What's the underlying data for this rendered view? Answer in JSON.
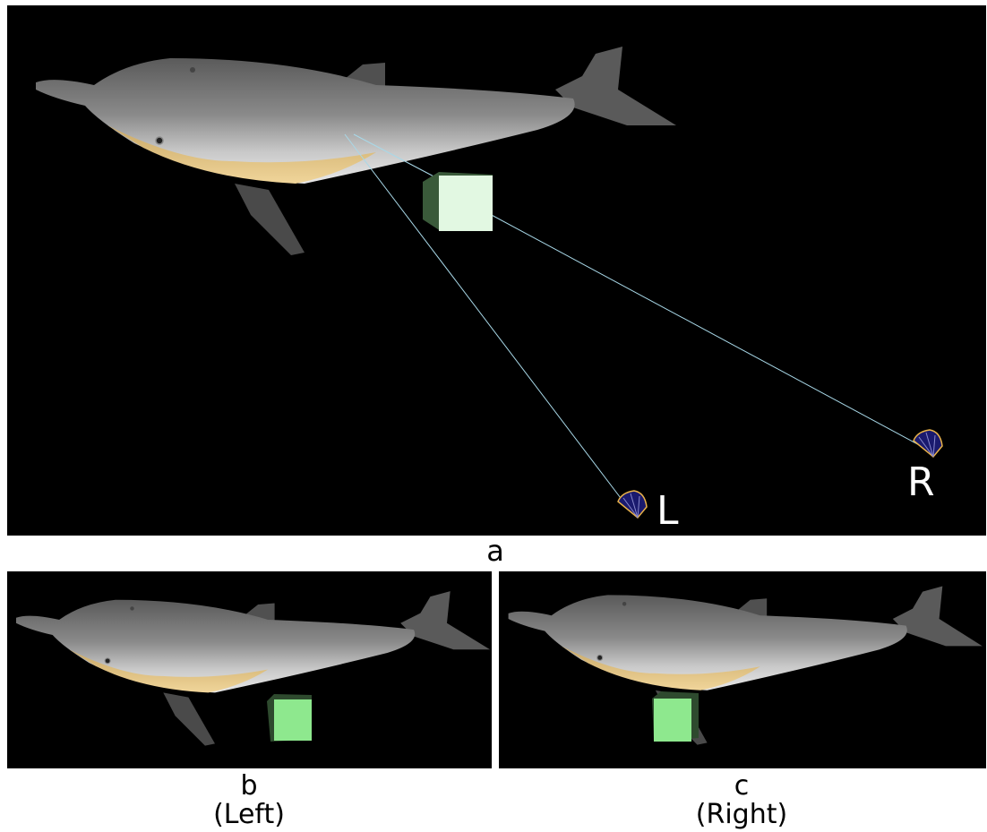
{
  "panel_a": {
    "label": "a",
    "cameras": [
      "L",
      "R"
    ]
  },
  "panel_b": {
    "label": "b",
    "caption": "(Left)"
  },
  "panel_c": {
    "label": "c",
    "caption": "(Right)"
  }
}
